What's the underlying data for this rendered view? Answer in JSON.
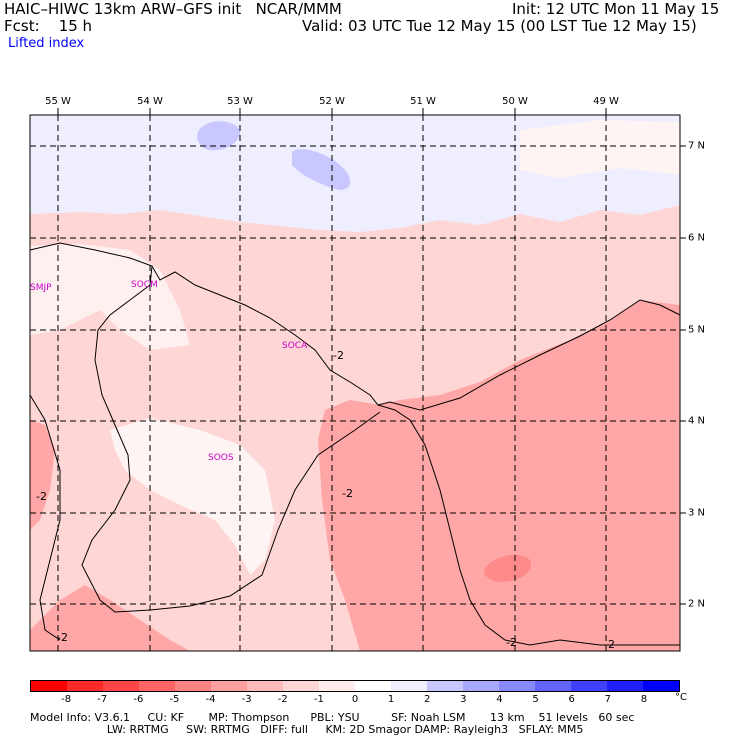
{
  "header": {
    "title_left": "HAIC–HIWC 13km ARW–GFS init   NCAR/MMM",
    "init": "Init: 12 UTC Mon 11 May 15",
    "fcst": "Fcst:    15 h",
    "valid": "Valid: 03 UTC Tue 12 May 15 (00 LST Tue 12 May 15)",
    "field": "Lifted index"
  },
  "map": {
    "lon_labels": [
      "55 W",
      "54 W",
      "53 W",
      "52 W",
      "51 W",
      "50 W",
      "49 W"
    ],
    "lat_labels": [
      "7 N",
      "6 N",
      "5 N",
      "4 N",
      "3 N",
      "2 N"
    ],
    "stations": [
      "SMJP",
      "SOCM",
      "SOCA",
      "SOOS"
    ],
    "contour_labels": [
      "-2",
      "-2",
      "-2",
      "-2",
      "-2",
      "-2"
    ]
  },
  "colorbar": {
    "colors": [
      "#ff0000",
      "#ff2a2a",
      "#ff4545",
      "#ff6464",
      "#ff8282",
      "#ffa0a0",
      "#ffbcbc",
      "#ffd6d6",
      "#ffecec",
      "#ffffff",
      "#eeeeff",
      "#c8c8ff",
      "#a8a8ff",
      "#8888ff",
      "#6464ff",
      "#4040ff",
      "#2020ff",
      "#0000ff"
    ],
    "tick_labels": [
      "-8",
      "-7",
      "-6",
      "-5",
      "-4",
      "-3",
      "-2",
      "-1",
      "0",
      "1",
      "2",
      "3",
      "4",
      "5",
      "6",
      "7",
      "8"
    ],
    "unit": "°C"
  },
  "footer": {
    "line1": "Model Info: V3.6.1     CU: KF       MP: Thompson      PBL: YSU         SF: Noah LSM       13 km    51 levels   60 sec",
    "line2": "                      LW: RRTMG     SW: RRTMG   DIFF: full     KM: 2D Smagor DAMP: Rayleigh3   SFLAY: MM5"
  }
}
